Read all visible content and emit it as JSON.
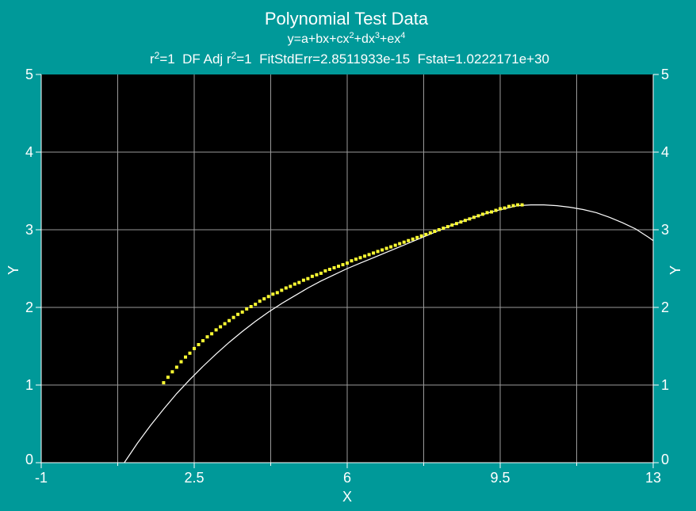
{
  "chart_data": {
    "type": "scatter",
    "title": "Polynomial Test Data",
    "equation_parts": [
      "y=a+bx+cx",
      "2",
      "+dx",
      "3",
      "+ex",
      "4"
    ],
    "stats_parts": [
      "r",
      "2",
      "=1  DF Adj r",
      "2",
      "=1  FitStdErr=2.8511933e-15  Fstat=1.0222171e+30"
    ],
    "xlabel": "X",
    "ylabel": "Y",
    "y2label": "Y",
    "xlim": [
      -1,
      13
    ],
    "ylim": [
      0,
      5
    ],
    "x_ticks": [
      -1,
      2.5,
      6,
      9.5,
      13
    ],
    "x_ticks_minor": [
      0.75,
      4.25,
      7.75,
      11.25
    ],
    "y_ticks": [
      0,
      1,
      2,
      3,
      4,
      5
    ],
    "grid": true,
    "colors": {
      "background": "#009999",
      "plot_area": "#000000",
      "grid": "#9a9a9a",
      "fit_curve": "#ffffff",
      "points": "#ffff33",
      "text": "#ffffff"
    },
    "points": {
      "name": "",
      "x": [
        1.8,
        1.9,
        2.0,
        2.1,
        2.2,
        2.3,
        2.4,
        2.5,
        2.6,
        2.7,
        2.8,
        2.9,
        3.0,
        3.1,
        3.2,
        3.3,
        3.4,
        3.5,
        3.6,
        3.7,
        3.8,
        3.9,
        4.0,
        4.1,
        4.2,
        4.3,
        4.4,
        4.5,
        4.6,
        4.7,
        4.8,
        4.9,
        5.0,
        5.1,
        5.2,
        5.3,
        5.4,
        5.5,
        5.6,
        5.7,
        5.8,
        5.9,
        6.0,
        6.1,
        6.2,
        6.3,
        6.4,
        6.5,
        6.6,
        6.7,
        6.8,
        6.9,
        7.0,
        7.1,
        7.2,
        7.3,
        7.4,
        7.5,
        7.6,
        7.7,
        7.8,
        7.9,
        8.0,
        8.1,
        8.2,
        8.3,
        8.4,
        8.5,
        8.6,
        8.7,
        8.8,
        8.9,
        9.0,
        9.1,
        9.2,
        9.3,
        9.4,
        9.5,
        9.6,
        9.7,
        9.8,
        9.9,
        10.0
      ],
      "y": [
        1.03,
        1.1,
        1.17,
        1.23,
        1.3,
        1.36,
        1.41,
        1.47,
        1.52,
        1.57,
        1.62,
        1.66,
        1.71,
        1.75,
        1.79,
        1.83,
        1.87,
        1.91,
        1.94,
        1.98,
        2.01,
        2.04,
        2.08,
        2.11,
        2.14,
        2.17,
        2.19,
        2.22,
        2.25,
        2.27,
        2.3,
        2.32,
        2.35,
        2.37,
        2.4,
        2.42,
        2.44,
        2.47,
        2.49,
        2.51,
        2.53,
        2.55,
        2.57,
        2.6,
        2.62,
        2.64,
        2.66,
        2.68,
        2.7,
        2.72,
        2.74,
        2.76,
        2.78,
        2.8,
        2.82,
        2.84,
        2.86,
        2.88,
        2.9,
        2.92,
        2.94,
        2.96,
        2.98,
        3.0,
        3.02,
        3.04,
        3.06,
        3.08,
        3.1,
        3.12,
        3.14,
        3.16,
        3.18,
        3.2,
        3.22,
        3.23,
        3.25,
        3.27,
        3.28,
        3.3,
        3.31,
        3.32,
        3.32
      ]
    },
    "fit_curve": {
      "x": [
        0.9,
        1.2,
        1.5,
        1.8,
        2.1,
        2.4,
        2.7,
        3.0,
        3.3,
        3.6,
        3.9,
        4.2,
        4.5,
        4.8,
        5.1,
        5.4,
        5.7,
        6.0,
        6.3,
        6.6,
        6.9,
        7.2,
        7.5,
        7.8,
        8.1,
        8.4,
        8.7,
        9.0,
        9.3,
        9.6,
        9.9,
        10.2,
        10.5,
        10.8,
        11.1,
        11.4,
        11.7,
        12.0,
        12.3,
        12.6,
        12.9,
        13.0
      ],
      "y": [
        0.0,
        0.25,
        0.48,
        0.69,
        0.89,
        1.07,
        1.24,
        1.4,
        1.55,
        1.69,
        1.82,
        1.94,
        2.05,
        2.15,
        2.25,
        2.34,
        2.42,
        2.5,
        2.57,
        2.64,
        2.71,
        2.78,
        2.85,
        2.92,
        2.99,
        3.06,
        3.12,
        3.18,
        3.23,
        3.27,
        3.31,
        3.32,
        3.32,
        3.31,
        3.29,
        3.26,
        3.22,
        3.16,
        3.09,
        3.01,
        2.9,
        2.86
      ]
    }
  }
}
